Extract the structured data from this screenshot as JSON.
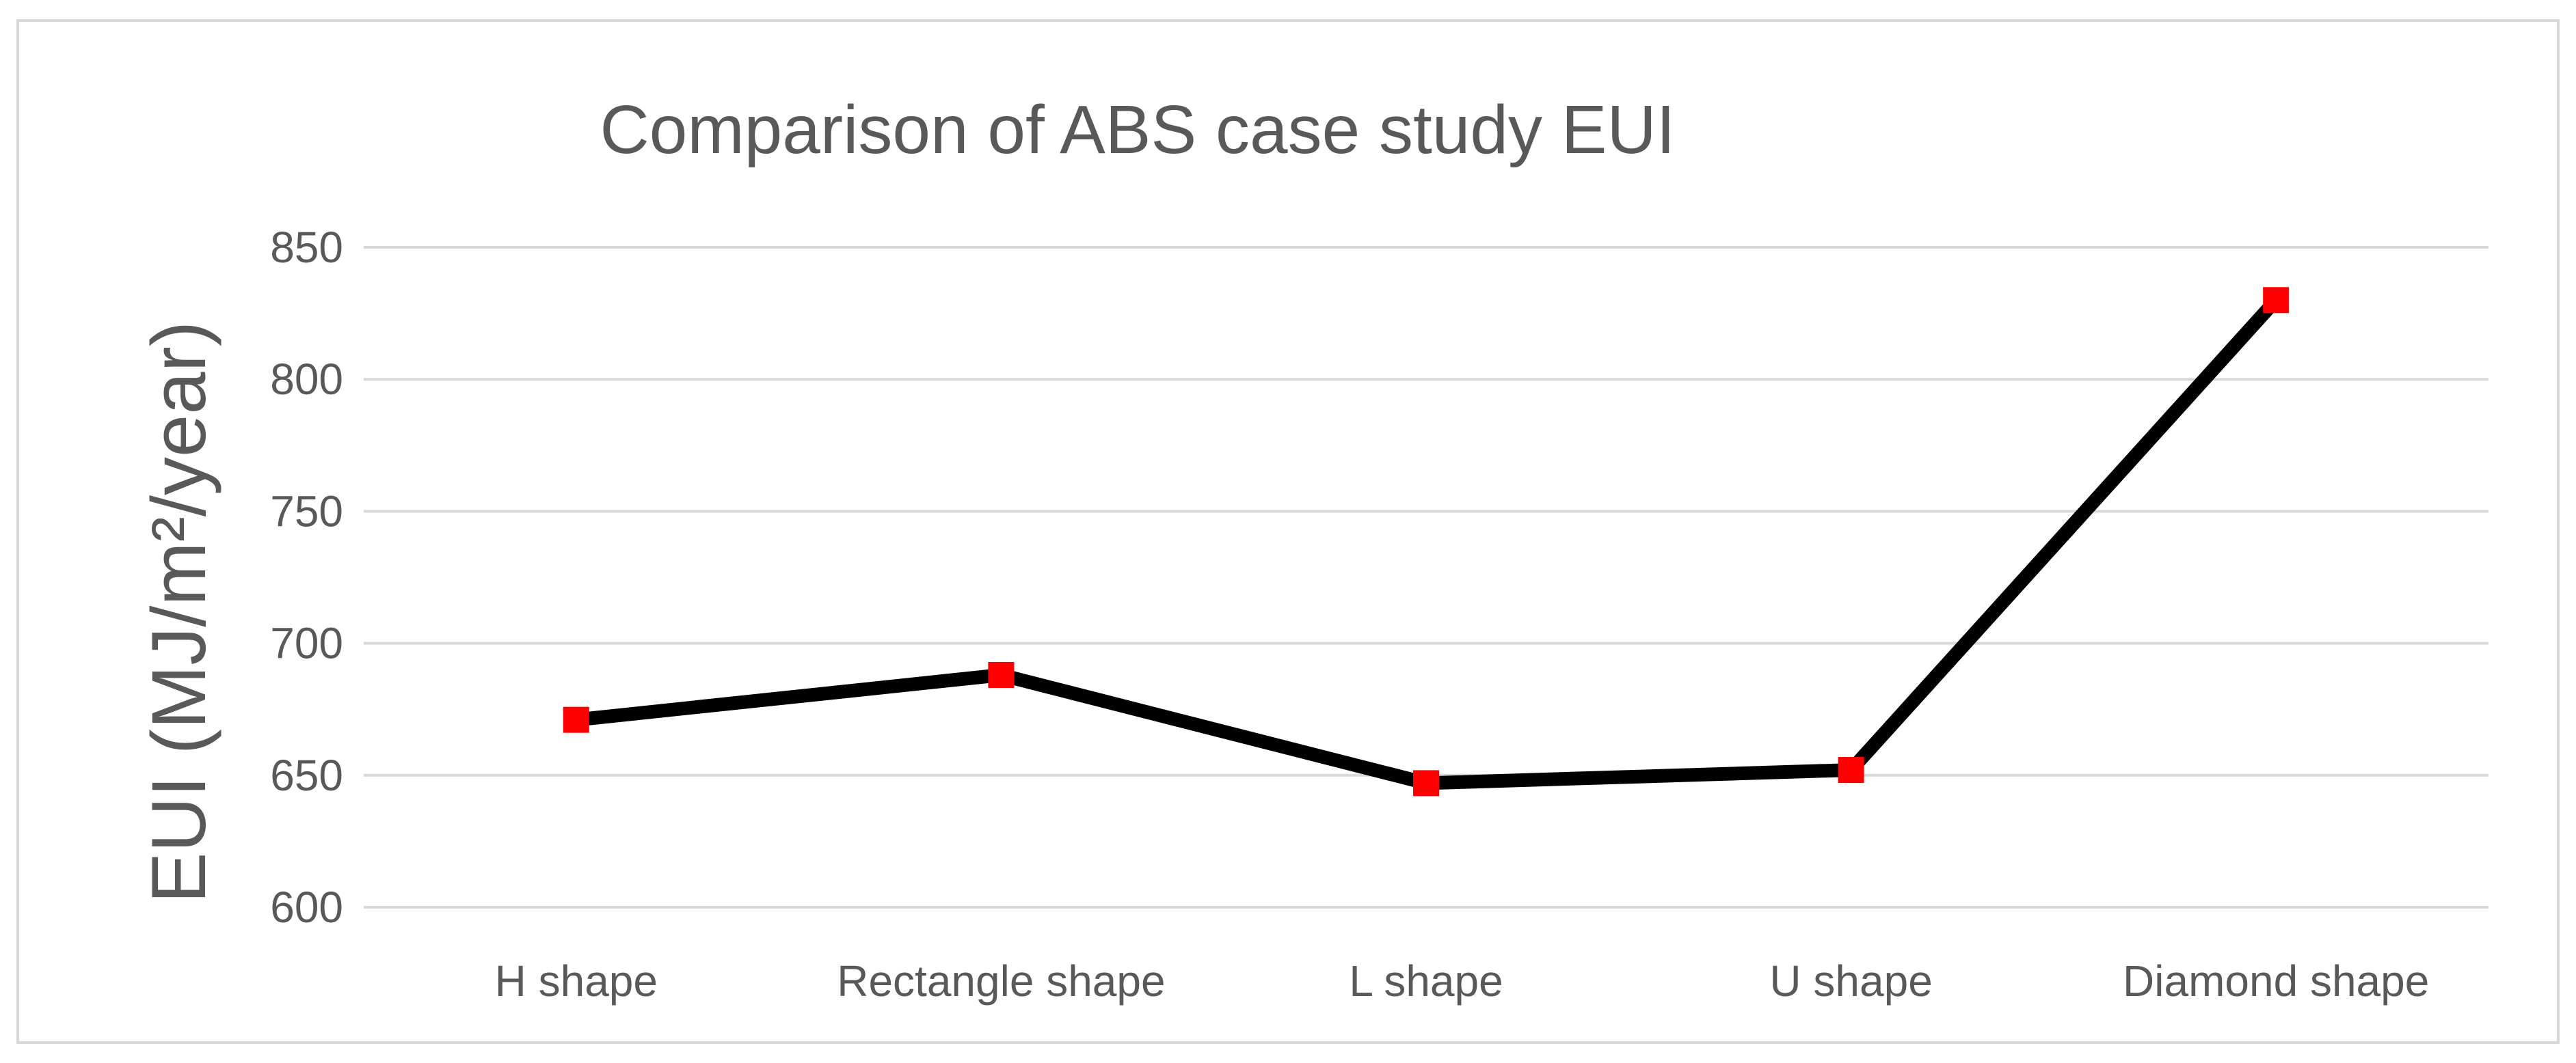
{
  "chart_data": {
    "type": "line",
    "title": "Comparison of ABS case study EUI",
    "xlabel": "",
    "ylabel": "EUI  (MJ/m²/year)",
    "categories": [
      "H shape",
      "Rectangle shape",
      "L shape",
      "U shape",
      "Diamond shape"
    ],
    "series": [
      {
        "values": [
          671,
          688,
          647,
          652,
          830
        ],
        "line_color": "#000000",
        "marker": "square",
        "marker_color": "#ff0000"
      }
    ],
    "ylim": [
      600,
      850
    ],
    "yticks": [
      600,
      650,
      700,
      750,
      800,
      850
    ],
    "grid": true,
    "legend": "none"
  }
}
